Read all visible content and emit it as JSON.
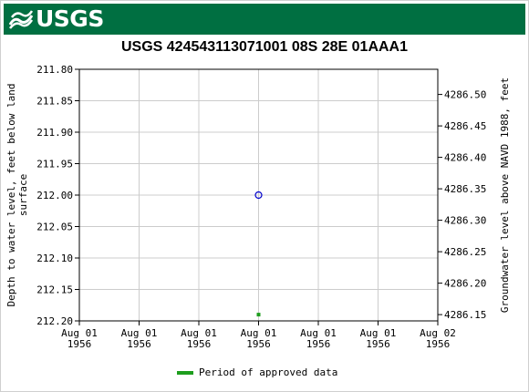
{
  "header": {
    "logo_text": "USGS",
    "banner_color": "#006f41"
  },
  "chart_data": {
    "type": "scatter",
    "title": "USGS 424543113071001 08S 28E 01AAA1",
    "ylabel_left": "Depth to water level, feet below land surface",
    "ylabel_right": "Groundwater level above NAVD 1988, feet",
    "y_left_range": [
      211.8,
      212.2
    ],
    "y_left_inverted": true,
    "y_left_ticks": [
      "211.80",
      "211.85",
      "211.90",
      "211.95",
      "212.00",
      "212.05",
      "212.10",
      "212.15",
      "212.20"
    ],
    "y_right_range": [
      4286.54,
      4286.14
    ],
    "y_right_ticks": [
      "4286.50",
      "4286.45",
      "4286.40",
      "4286.35",
      "4286.30",
      "4286.25",
      "4286.20",
      "4286.15"
    ],
    "y_right_tick_values": [
      4286.5,
      4286.45,
      4286.4,
      4286.35,
      4286.3,
      4286.25,
      4286.2,
      4286.15
    ],
    "x_ticks": [
      [
        "Aug 01",
        "1956"
      ],
      [
        "Aug 01",
        "1956"
      ],
      [
        "Aug 01",
        "1956"
      ],
      [
        "Aug 01",
        "1956"
      ],
      [
        "Aug 01",
        "1956"
      ],
      [
        "Aug 01",
        "1956"
      ],
      [
        "Aug 02",
        "1956"
      ]
    ],
    "grid": true,
    "series": [
      {
        "name": "measurement",
        "marker": "open-circle",
        "color": "#0000cc",
        "x": 0.5,
        "values": [
          212.0
        ]
      },
      {
        "name": "Period of approved data",
        "marker": "square",
        "color": "#1e9e1e",
        "x": 0.5,
        "values": [
          212.19
        ]
      }
    ],
    "legend": {
      "position": "bottom-center",
      "entries": [
        {
          "label": "Period of approved data",
          "color": "#1e9e1e"
        }
      ]
    }
  }
}
